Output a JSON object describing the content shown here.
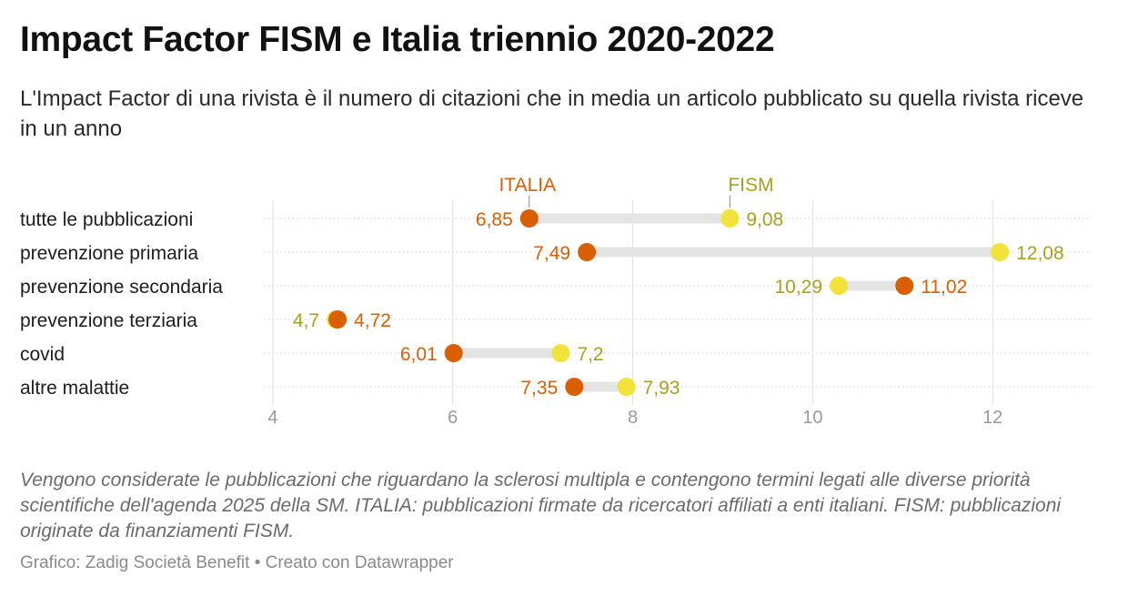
{
  "header": {
    "title": "Impact Factor FISM e Italia triennio 2020-2022",
    "subtitle": "L'Impact Factor di una rivista è il numero di citazioni che in media un articolo pubblicato su quella rivista riceve in un anno"
  },
  "footer": {
    "notes": "Vengono considerate le pubblicazioni che riguardano la sclerosi multipla e contengono termini legati alle diverse priorità scientifiche dell'agenda 2025 della SM. ITALIA: pubblicazioni firmate da ricercatori affiliati a enti italiani. FISM: pubblicazioni originate da finanziamenti FISM.",
    "source": "Grafico: Zadig Società Benefit • Creato con Datawrapper"
  },
  "chart_data": {
    "type": "dot-range",
    "categories": [
      "tutte le pubblicazioni",
      "prevenzione primaria",
      "prevenzione secondaria",
      "prevenzione terziaria",
      "covid",
      "altre malattie"
    ],
    "series": [
      {
        "name": "ITALIA",
        "color": "#d95f02",
        "values": [
          6.85,
          7.49,
          11.02,
          4.72,
          6.01,
          7.35
        ],
        "labels": [
          "6,85",
          "7,49",
          "11,02",
          "4,72",
          "6,01",
          "7,35"
        ]
      },
      {
        "name": "FISM",
        "color": "#f2e33a",
        "label_color": "#a6a31a",
        "values": [
          9.08,
          12.08,
          10.29,
          4.7,
          7.2,
          7.93
        ],
        "labels": [
          "9,08",
          "12,08",
          "10,29",
          "4,7",
          "7,2",
          "7,93"
        ]
      }
    ],
    "x_ticks": [
      4,
      6,
      8,
      10,
      12
    ],
    "x_tick_labels": [
      "4",
      "6",
      "8",
      "10",
      "12"
    ],
    "xlim": [
      3.9,
      13.1
    ],
    "grid": true,
    "legend": "direct labels above first row"
  }
}
